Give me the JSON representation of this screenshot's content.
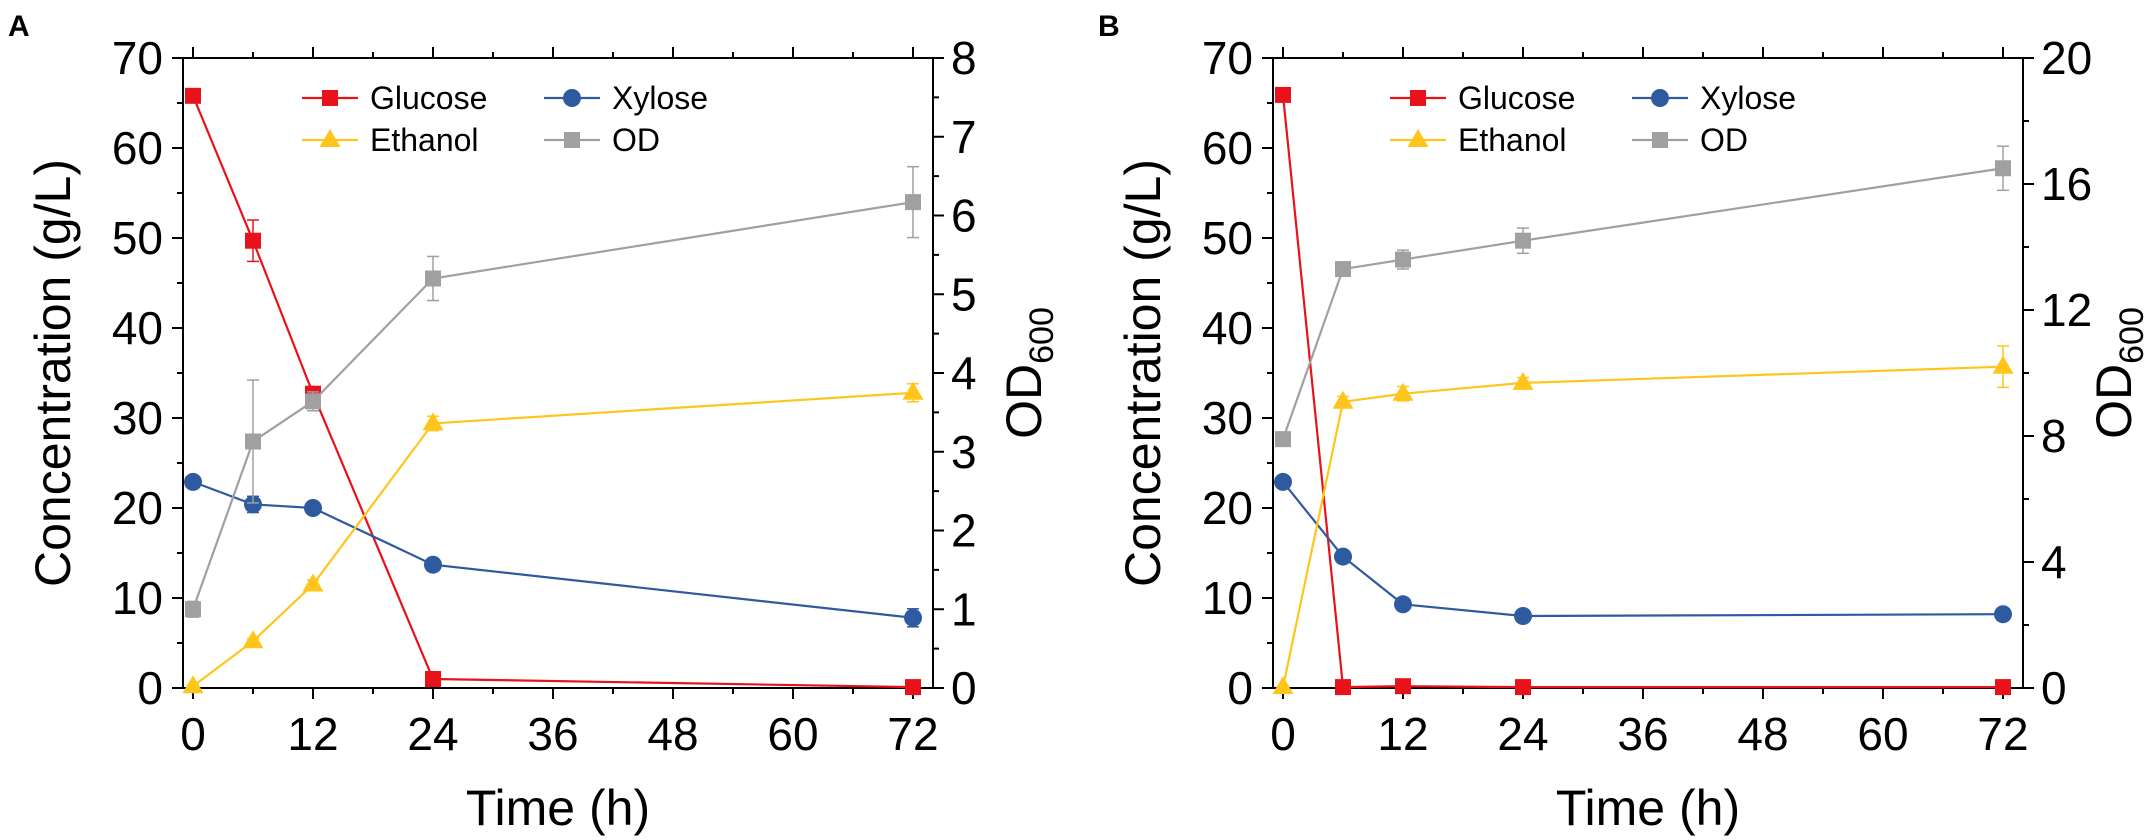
{
  "chart_data": [
    {
      "panel_label": "A",
      "type": "line",
      "xlabel": "Time (h)",
      "ylabel": "Concentration (g/L)",
      "y2label": {
        "base": "OD",
        "subscript": "600"
      },
      "xticks": [
        0,
        12,
        24,
        36,
        48,
        60,
        72
      ],
      "xlim": [
        -1,
        74
      ],
      "ylim": [
        0,
        70
      ],
      "yticks": [
        0,
        10,
        20,
        30,
        40,
        50,
        60,
        70
      ],
      "y2lim": [
        0,
        8
      ],
      "y2ticks": [
        0,
        1,
        2,
        3,
        4,
        5,
        6,
        7,
        8
      ],
      "legend": {
        "placement": "top-center",
        "columns": 2
      },
      "series": [
        {
          "name": "Glucose",
          "axis": "left",
          "color": "#e8121b",
          "marker": "square",
          "x": [
            0,
            6,
            12,
            24,
            72
          ],
          "y": [
            65.8,
            49.7,
            32.7,
            1.0,
            0.1
          ],
          "err": [
            0.4,
            2.3,
            0.4,
            0.3,
            0.1
          ]
        },
        {
          "name": "Xylose",
          "axis": "left",
          "color": "#2e5aa0",
          "marker": "circle",
          "x": [
            0,
            6,
            12,
            24,
            72
          ],
          "y": [
            22.9,
            20.4,
            20.0,
            13.7,
            7.8
          ],
          "err": [
            0.3,
            0.9,
            0.3,
            0.3,
            1.0
          ]
        },
        {
          "name": "Ethanol",
          "axis": "left",
          "color": "#ffc51b",
          "marker": "triangle",
          "x": [
            0,
            6,
            12,
            24,
            72
          ],
          "y": [
            0.2,
            5.2,
            11.5,
            29.4,
            32.8
          ],
          "err": [
            0.1,
            0.3,
            0.5,
            0.8,
            1.0
          ]
        },
        {
          "name": "OD",
          "axis": "right",
          "color": "#a0a0a0",
          "marker": "square",
          "x": [
            0,
            6,
            12,
            24,
            72
          ],
          "y": [
            1.0,
            3.13,
            3.64,
            5.2,
            6.17
          ],
          "err": [
            0.1,
            0.78,
            0.12,
            0.28,
            0.45
          ]
        }
      ]
    },
    {
      "panel_label": "B",
      "type": "line",
      "xlabel": "Time (h)",
      "ylabel": "Concentration (g/L)",
      "y2label": {
        "base": "OD",
        "subscript": "600"
      },
      "xticks": [
        0,
        12,
        24,
        36,
        48,
        60,
        72
      ],
      "xlim": [
        -1,
        74
      ],
      "ylim": [
        0,
        70
      ],
      "yticks": [
        0,
        10,
        20,
        30,
        40,
        50,
        60,
        70
      ],
      "y2lim": [
        0,
        20
      ],
      "y2ticks": [
        0,
        4,
        8,
        12,
        16,
        20
      ],
      "legend": {
        "placement": "top-center",
        "columns": 2
      },
      "series": [
        {
          "name": "Glucose",
          "axis": "left",
          "color": "#e8121b",
          "marker": "square",
          "x": [
            0,
            6,
            12,
            24,
            72
          ],
          "y": [
            65.9,
            0.1,
            0.2,
            0.1,
            0.1
          ],
          "err": [
            0.3,
            0.1,
            0.1,
            0.1,
            0.1
          ]
        },
        {
          "name": "Xylose",
          "axis": "left",
          "color": "#2e5aa0",
          "marker": "circle",
          "x": [
            0,
            6,
            12,
            24,
            72
          ],
          "y": [
            22.9,
            14.6,
            9.3,
            8.0,
            8.2
          ],
          "err": [
            0.3,
            0.4,
            0.3,
            0.4,
            0.3
          ]
        },
        {
          "name": "Ethanol",
          "axis": "left",
          "color": "#ffc51b",
          "marker": "triangle",
          "x": [
            0,
            6,
            12,
            24,
            72
          ],
          "y": [
            0.1,
            31.8,
            32.7,
            33.9,
            35.7
          ],
          "err": [
            0.1,
            0.6,
            0.8,
            0.6,
            2.3
          ]
        },
        {
          "name": "OD",
          "axis": "right",
          "color": "#a0a0a0",
          "marker": "square",
          "x": [
            0,
            6,
            12,
            24,
            72
          ],
          "y": [
            7.9,
            13.3,
            13.6,
            14.2,
            16.5
          ],
          "err": [
            0.2,
            0.2,
            0.3,
            0.4,
            0.7
          ]
        }
      ]
    }
  ]
}
